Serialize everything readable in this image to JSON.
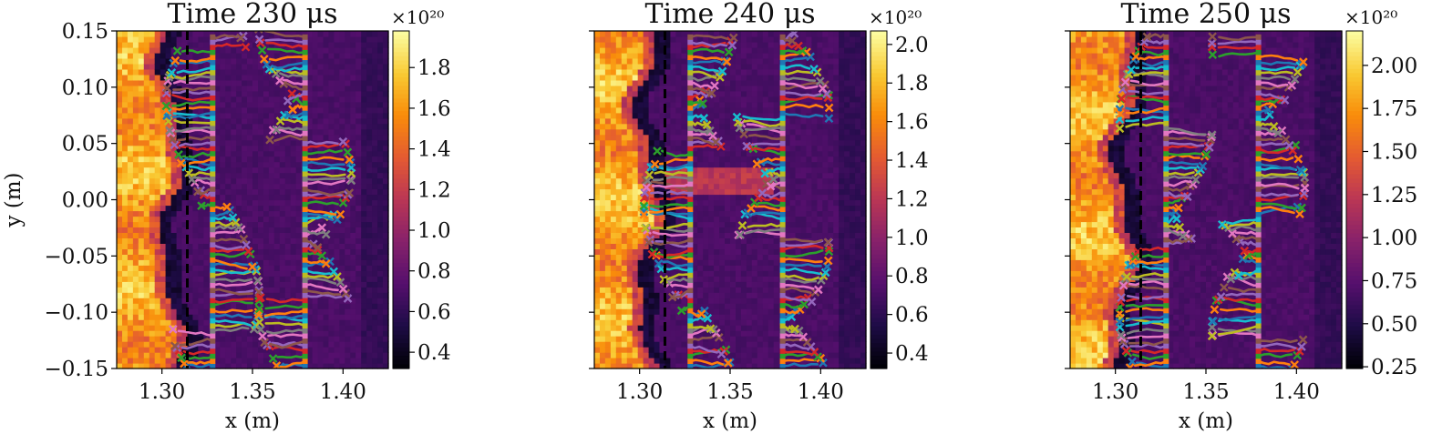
{
  "chart_data": [
    {
      "type": "heatmap",
      "title": "Time 230 μs",
      "xlabel": "x (m)",
      "ylabel": "y (m)",
      "xlim": [
        1.275,
        1.425
      ],
      "ylim": [
        -0.15,
        0.15
      ],
      "xticks": [
        "1.30",
        "1.35",
        "1.40"
      ],
      "yticks": [
        "0.15",
        "0.10",
        "0.05",
        "0.00",
        "−0.05",
        "−0.10",
        "−0.15"
      ],
      "colormap": "inferno",
      "colorbar": {
        "multiplier": "×10²⁰",
        "range": [
          0.32,
          1.98
        ],
        "ticks": [
          "0.4",
          "0.6",
          "0.8",
          "1.0",
          "1.2",
          "1.4",
          "1.6",
          "1.8"
        ]
      },
      "reference_line": {
        "x": 1.314,
        "style": "dashed",
        "color": "#000000"
      },
      "trajectory_bands_x": [
        1.328,
        1.379
      ],
      "trajectory_colors": [
        "#1f77b4",
        "#ff7f0e",
        "#2ca02c",
        "#d62728",
        "#9467bd",
        "#8c564b",
        "#e377c2",
        "#7f7f7f",
        "#bcbd22",
        "#17becf"
      ]
    },
    {
      "type": "heatmap",
      "title": "Time 240 μs",
      "xlabel": "x (m)",
      "ylabel": "",
      "xlim": [
        1.275,
        1.425
      ],
      "ylim": [
        -0.15,
        0.15
      ],
      "xticks": [
        "1.30",
        "1.35",
        "1.40"
      ],
      "yticks": [],
      "colormap": "inferno",
      "colorbar": {
        "multiplier": "×10²⁰",
        "range": [
          0.32,
          2.07
        ],
        "ticks": [
          "0.4",
          "0.6",
          "0.8",
          "1.0",
          "1.2",
          "1.4",
          "1.6",
          "1.8",
          "2.0"
        ]
      },
      "reference_line": {
        "x": 1.314,
        "style": "dashed",
        "color": "#000000"
      },
      "trajectory_bands_x": [
        1.328,
        1.379
      ],
      "trajectory_colors": [
        "#1f77b4",
        "#ff7f0e",
        "#2ca02c",
        "#d62728",
        "#9467bd",
        "#8c564b",
        "#e377c2",
        "#7f7f7f",
        "#bcbd22",
        "#17becf"
      ]
    },
    {
      "type": "heatmap",
      "title": "Time 250 μs",
      "xlabel": "x (m)",
      "ylabel": "",
      "xlim": [
        1.275,
        1.425
      ],
      "ylim": [
        -0.15,
        0.15
      ],
      "xticks": [
        "1.30",
        "1.35",
        "1.40"
      ],
      "yticks": [],
      "colormap": "inferno",
      "colorbar": {
        "multiplier": "×10²⁰",
        "range": [
          0.24,
          2.2
        ],
        "ticks": [
          "0.25",
          "0.50",
          "0.75",
          "1.00",
          "1.25",
          "1.50",
          "1.75",
          "2.00"
        ]
      },
      "reference_line": {
        "x": 1.314,
        "style": "dashed",
        "color": "#000000"
      },
      "trajectory_bands_x": [
        1.328,
        1.379
      ],
      "trajectory_colors": [
        "#1f77b4",
        "#ff7f0e",
        "#2ca02c",
        "#d62728",
        "#9467bd",
        "#8c564b",
        "#e377c2",
        "#7f7f7f",
        "#bcbd22",
        "#17becf"
      ]
    }
  ]
}
